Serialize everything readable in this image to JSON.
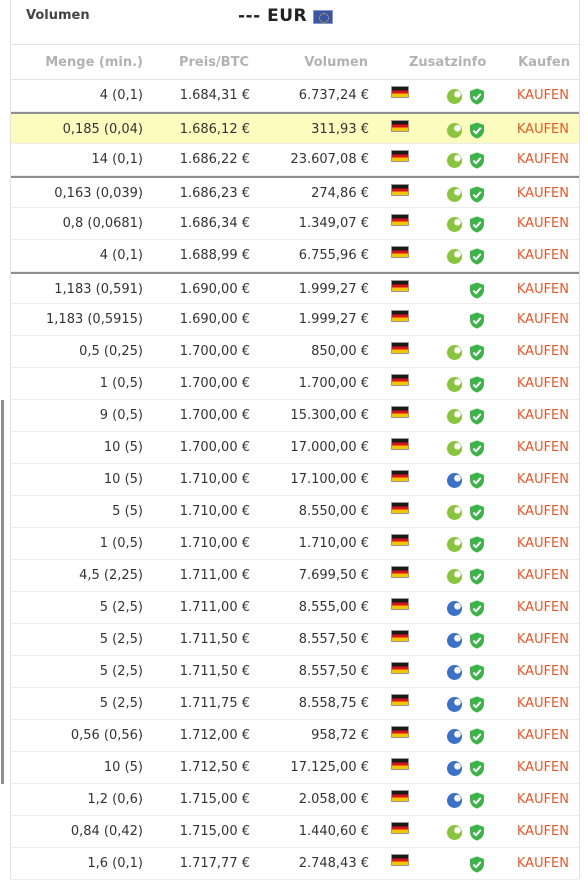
{
  "topbar": {
    "volumen_label": "Volumen",
    "currency_label": "--- EUR"
  },
  "header": {
    "menge": "Menge (min.)",
    "preis": "Preis/BTC",
    "volumen": "Volumen",
    "zusatzinfo": "Zusatzinfo",
    "kaufen": "Kaufen"
  },
  "colors": {
    "accent_buy": "#e25a2b",
    "highlight_row": "#fdfcbf",
    "leaf_green": "#8bc53f",
    "leaf_blue": "#3b6fc9",
    "shield_green": "#3db34a"
  },
  "rows": [
    {
      "menge": "4 (0,1)",
      "preis": "1.684,31 €",
      "volumen": "6.737,24 €",
      "leaf": "green",
      "kaufen": "KAUFEN"
    },
    {
      "menge": "0,185 (0,04)",
      "preis": "1.686,12 €",
      "volumen": "311,93 €",
      "leaf": "green",
      "kaufen": "KAUFEN"
    },
    {
      "menge": "14 (0,1)",
      "preis": "1.686,22 €",
      "volumen": "23.607,08 €",
      "leaf": "green",
      "kaufen": "KAUFEN"
    },
    {
      "menge": "0,163 (0,039)",
      "preis": "1.686,23 €",
      "volumen": "274,86 €",
      "leaf": "green",
      "kaufen": "KAUFEN"
    },
    {
      "menge": "0,8 (0,0681)",
      "preis": "1.686,34 €",
      "volumen": "1.349,07 €",
      "leaf": "green",
      "kaufen": "KAUFEN"
    },
    {
      "menge": "4 (0,1)",
      "preis": "1.688,99 €",
      "volumen": "6.755,96 €",
      "leaf": "green",
      "kaufen": "KAUFEN"
    },
    {
      "menge": "1,183 (0,591)",
      "preis": "1.690,00 €",
      "volumen": "1.999,27 €",
      "leaf": "none",
      "kaufen": "KAUFEN"
    },
    {
      "menge": "1,183 (0,5915)",
      "preis": "1.690,00 €",
      "volumen": "1.999,27 €",
      "leaf": "none",
      "kaufen": "KAUFEN"
    },
    {
      "menge": "0,5 (0,25)",
      "preis": "1.700,00 €",
      "volumen": "850,00 €",
      "leaf": "green",
      "kaufen": "KAUFEN"
    },
    {
      "menge": "1 (0,5)",
      "preis": "1.700,00 €",
      "volumen": "1.700,00 €",
      "leaf": "green",
      "kaufen": "KAUFEN"
    },
    {
      "menge": "9 (0,5)",
      "preis": "1.700,00 €",
      "volumen": "15.300,00 €",
      "leaf": "green",
      "kaufen": "KAUFEN"
    },
    {
      "menge": "10 (5)",
      "preis": "1.700,00 €",
      "volumen": "17.000,00 €",
      "leaf": "green",
      "kaufen": "KAUFEN"
    },
    {
      "menge": "10 (5)",
      "preis": "1.710,00 €",
      "volumen": "17.100,00 €",
      "leaf": "blue",
      "kaufen": "KAUFEN"
    },
    {
      "menge": "5 (5)",
      "preis": "1.710,00 €",
      "volumen": "8.550,00 €",
      "leaf": "green",
      "kaufen": "KAUFEN"
    },
    {
      "menge": "1 (0,5)",
      "preis": "1.710,00 €",
      "volumen": "1.710,00 €",
      "leaf": "green",
      "kaufen": "KAUFEN"
    },
    {
      "menge": "4,5 (2,25)",
      "preis": "1.711,00 €",
      "volumen": "7.699,50 €",
      "leaf": "green",
      "kaufen": "KAUFEN"
    },
    {
      "menge": "5 (2,5)",
      "preis": "1.711,00 €",
      "volumen": "8.555,00 €",
      "leaf": "blue",
      "kaufen": "KAUFEN"
    },
    {
      "menge": "5 (2,5)",
      "preis": "1.711,50 €",
      "volumen": "8.557,50 €",
      "leaf": "blue",
      "kaufen": "KAUFEN"
    },
    {
      "menge": "5 (2,5)",
      "preis": "1.711,50 €",
      "volumen": "8.557,50 €",
      "leaf": "blue",
      "kaufen": "KAUFEN"
    },
    {
      "menge": "5 (2,5)",
      "preis": "1.711,75 €",
      "volumen": "8.558,75 €",
      "leaf": "blue",
      "kaufen": "KAUFEN"
    },
    {
      "menge": "0,56 (0,56)",
      "preis": "1.712,00 €",
      "volumen": "958,72 €",
      "leaf": "blue",
      "kaufen": "KAUFEN"
    },
    {
      "menge": "10 (5)",
      "preis": "1.712,50 €",
      "volumen": "17.125,00 €",
      "leaf": "blue",
      "kaufen": "KAUFEN"
    },
    {
      "menge": "1,2 (0,6)",
      "preis": "1.715,00 €",
      "volumen": "2.058,00 €",
      "leaf": "blue",
      "kaufen": "KAUFEN"
    },
    {
      "menge": "0,84 (0,42)",
      "preis": "1.715,00 €",
      "volumen": "1.440,60 €",
      "leaf": "green",
      "kaufen": "KAUFEN"
    },
    {
      "menge": "1,6 (0,1)",
      "preis": "1.717,77 €",
      "volumen": "2.748,43 €",
      "leaf": "none",
      "kaufen": "KAUFEN"
    }
  ]
}
